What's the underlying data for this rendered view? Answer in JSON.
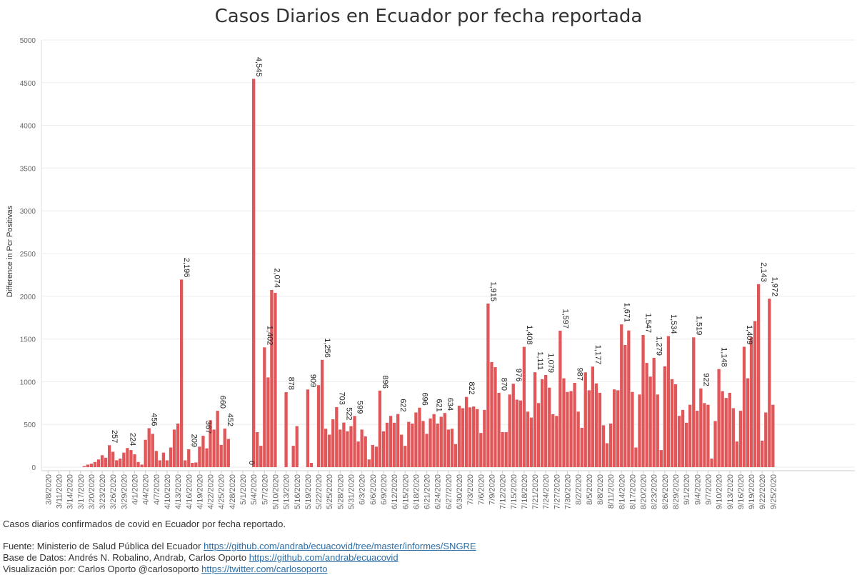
{
  "title": "Casos Diarios en Ecuador por fecha reportada",
  "caption": "Casos diarios confirmados de covid en Ecuador por fecha reportado.",
  "credits": [
    {
      "text": "Fuente: Ministerio de Salud Pública del Ecuador ",
      "link": "https://github.com/andrab/ecuacovid/tree/master/informes/SNGRE"
    },
    {
      "text": "Base de Datos: Andrés N. Robalino, Andrab, Carlos Oporto ",
      "link": "https://github.com/andrab/ecuacovid"
    },
    {
      "text": "Visualización por: Carlos Oporto @carlosoporto ",
      "link": "https://twitter.com/carlosoporto"
    }
  ],
  "colors": {
    "bar": "#e15759",
    "grid": "#ececec",
    "text": "#333333",
    "axis": "#888888"
  },
  "chart_data": {
    "type": "bar",
    "title": "Casos Diarios en Ecuador por fecha reportada",
    "xlabel": "",
    "ylabel": "Difference in Pcr Positivas",
    "ylim": [
      0,
      5000
    ],
    "yticks": [
      0,
      500,
      1000,
      1500,
      2000,
      2500,
      3000,
      3500,
      4000,
      4500,
      5000
    ],
    "grid": true,
    "start_date": "2020-03-08",
    "xtick_labels": [
      "3/8/2020",
      "3/11/2020",
      "3/14/2020",
      "3/17/2020",
      "3/20/2020",
      "3/23/2020",
      "3/26/2020",
      "3/29/2020",
      "4/1/2020",
      "4/4/2020",
      "4/7/2020",
      "4/10/2020",
      "4/13/2020",
      "4/16/2020",
      "4/19/2020",
      "4/22/2020",
      "4/25/2020",
      "4/28/2020",
      "5/1/2020",
      "5/4/2020",
      "5/7/2020",
      "5/10/2020",
      "5/13/2020",
      "5/16/2020",
      "5/19/2020",
      "5/22/2020",
      "5/25/2020",
      "5/28/2020",
      "5/31/2020",
      "6/3/2020",
      "6/6/2020",
      "6/9/2020",
      "6/12/2020",
      "6/15/2020",
      "6/18/2020",
      "6/21/2020",
      "6/24/2020",
      "6/27/2020",
      "6/30/2020",
      "7/3/2020",
      "7/6/2020",
      "7/9/2020",
      "7/12/2020",
      "7/15/2020",
      "7/18/2020",
      "7/21/2020",
      "7/24/2020",
      "7/27/2020",
      "7/30/2020",
      "8/2/2020",
      "8/5/2020",
      "8/8/2020",
      "8/11/2020",
      "8/14/2020",
      "8/17/2020",
      "8/20/2020",
      "8/23/2020",
      "8/26/2020",
      "8/29/2020",
      "9/1/2020",
      "9/4/2020",
      "9/7/2020",
      "9/10/2020",
      "9/13/2020",
      "9/16/2020",
      "9/19/2020",
      "9/22/2020",
      "9/25/2020"
    ],
    "values": [
      null,
      null,
      null,
      null,
      null,
      null,
      null,
      null,
      null,
      null,
      12,
      30,
      40,
      60,
      90,
      140,
      110,
      257,
      180,
      80,
      100,
      170,
      224,
      200,
      150,
      60,
      30,
      320,
      456,
      390,
      190,
      80,
      170,
      80,
      230,
      440,
      510,
      2196,
      80,
      209,
      50,
      55,
      240,
      367,
      220,
      550,
      440,
      660,
      260,
      452,
      330,
      null,
      null,
      null,
      null,
      0,
      null,
      4545,
      410,
      250,
      1402,
      1050,
      2074,
      2040,
      null,
      null,
      878,
      null,
      250,
      480,
      null,
      null,
      909,
      50,
      null,
      960,
      1256,
      450,
      380,
      560,
      703,
      440,
      522,
      420,
      480,
      599,
      300,
      440,
      360,
      90,
      260,
      240,
      896,
      420,
      520,
      600,
      520,
      622,
      380,
      250,
      530,
      510,
      640,
      696,
      540,
      390,
      570,
      621,
      510,
      590,
      634,
      440,
      450,
      270,
      720,
      690,
      822,
      700,
      710,
      680,
      400,
      670,
      1915,
      1230,
      1170,
      870,
      410,
      410,
      850,
      976,
      790,
      780,
      1408,
      650,
      580,
      1111,
      750,
      1030,
      1079,
      930,
      620,
      600,
      1597,
      1040,
      880,
      890,
      987,
      650,
      460,
      1110,
      900,
      1177,
      980,
      870,
      490,
      280,
      510,
      910,
      900,
      1671,
      1430,
      1600,
      880,
      230,
      850,
      1547,
      1220,
      1060,
      1279,
      850,
      200,
      1180,
      1534,
      1030,
      970,
      600,
      670,
      520,
      730,
      1519,
      660,
      922,
      750,
      730,
      100,
      540,
      1148,
      890,
      810,
      870,
      690,
      300,
      660,
      1409,
      1040,
      1520,
      1710,
      2143,
      310,
      640,
      1972,
      730
    ],
    "labeled_values": [
      257,
      224,
      456,
      2196,
      209,
      367,
      660,
      452,
      0,
      4545,
      1402,
      2074,
      878,
      909,
      1256,
      703,
      522,
      599,
      896,
      622,
      696,
      621,
      634,
      822,
      1915,
      976,
      1408,
      1111,
      1079,
      1597,
      987,
      1177,
      1671,
      1547,
      1279,
      1534,
      1519,
      922,
      1148,
      870,
      1409,
      2143,
      1972
    ]
  }
}
